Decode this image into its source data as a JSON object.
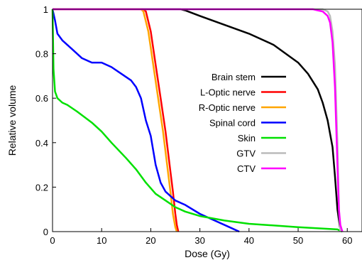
{
  "chart_data": {
    "type": "line",
    "title": "",
    "xlabel": "Dose (Gy)",
    "ylabel": "Relative volume",
    "xlim": [
      0,
      63
    ],
    "ylim": [
      0,
      1
    ],
    "x_ticks": [
      "0",
      "10",
      "20",
      "30",
      "40",
      "50",
      "60"
    ],
    "y_ticks": [
      "0",
      "0.2",
      "0.4",
      "0.6",
      "0.8",
      "1"
    ],
    "legend_position": "center-right",
    "grid": false,
    "series": [
      {
        "name": "Brain stem",
        "color": "#000000",
        "x": [
          0,
          26,
          27,
          30,
          35,
          40,
          45,
          50,
          52,
          54,
          55,
          56,
          57,
          57.5,
          58,
          58.5,
          59
        ],
        "y": [
          1,
          1,
          0.995,
          0.97,
          0.93,
          0.89,
          0.84,
          0.76,
          0.71,
          0.64,
          0.58,
          0.5,
          0.38,
          0.25,
          0.1,
          0.02,
          0
        ]
      },
      {
        "name": "L-Optic nerve",
        "color": "#ff0000",
        "x": [
          0,
          18.5,
          19,
          20,
          21,
          22,
          23,
          24,
          24.5,
          25,
          25.3,
          25.6
        ],
        "y": [
          1,
          1,
          0.99,
          0.9,
          0.75,
          0.6,
          0.45,
          0.27,
          0.18,
          0.08,
          0.03,
          0
        ]
      },
      {
        "name": "R-Optic nerve",
        "color": "#ffa500",
        "x": [
          0,
          18,
          18.5,
          19.5,
          20.5,
          21.5,
          22.5,
          23.5,
          24,
          24.5,
          25,
          25.3
        ],
        "y": [
          1,
          1,
          0.99,
          0.9,
          0.75,
          0.6,
          0.45,
          0.27,
          0.18,
          0.08,
          0.02,
          0
        ]
      },
      {
        "name": "Spinal cord",
        "color": "#0000ff",
        "x": [
          0,
          0.5,
          1,
          2,
          4,
          6,
          8,
          10,
          12,
          14,
          16,
          17,
          18,
          19,
          20,
          21,
          22,
          23,
          24,
          25,
          27,
          30,
          33,
          36,
          38
        ],
        "y": [
          1,
          0.95,
          0.89,
          0.86,
          0.82,
          0.78,
          0.76,
          0.76,
          0.74,
          0.71,
          0.68,
          0.65,
          0.6,
          0.5,
          0.43,
          0.3,
          0.22,
          0.18,
          0.16,
          0.14,
          0.12,
          0.08,
          0.05,
          0.02,
          0
        ]
      },
      {
        "name": "Skin",
        "color": "#00e000",
        "x": [
          0,
          0.2,
          0.5,
          1,
          2,
          3,
          5,
          8,
          10,
          12,
          15,
          17,
          19,
          21,
          23,
          25,
          27,
          30,
          35,
          40,
          50,
          58,
          59
        ],
        "y": [
          1,
          0.73,
          0.63,
          0.6,
          0.58,
          0.57,
          0.54,
          0.49,
          0.45,
          0.4,
          0.33,
          0.28,
          0.22,
          0.17,
          0.14,
          0.11,
          0.09,
          0.07,
          0.05,
          0.035,
          0.02,
          0.01,
          0
        ]
      },
      {
        "name": "GTV",
        "color": "#bbbbbb",
        "x": [
          0,
          55,
          56,
          56.5,
          57,
          57.5,
          58,
          58.3,
          58.6
        ],
        "y": [
          1,
          1,
          0.99,
          0.97,
          0.9,
          0.75,
          0.4,
          0.1,
          0
        ]
      },
      {
        "name": "CTV",
        "color": "#ff00ff",
        "x": [
          0,
          53,
          54,
          55,
          56,
          56.5,
          57,
          57.5,
          58,
          58.3,
          58.6,
          59
        ],
        "y": [
          1,
          1,
          0.995,
          0.99,
          0.97,
          0.94,
          0.85,
          0.65,
          0.3,
          0.1,
          0.03,
          0
        ]
      }
    ]
  }
}
